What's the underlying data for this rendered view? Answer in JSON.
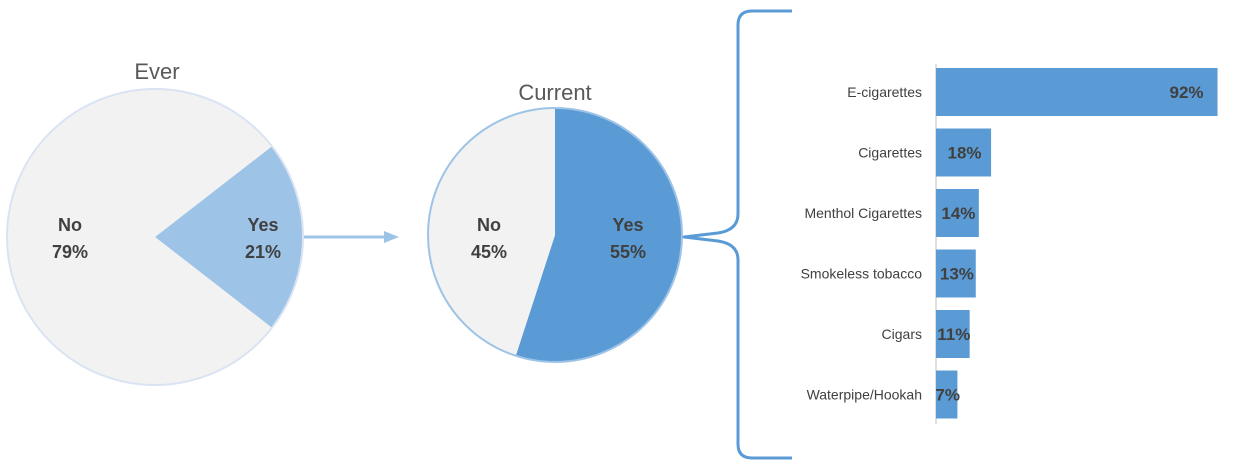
{
  "chart_data": [
    {
      "type": "pie",
      "title": "Ever",
      "slices": [
        {
          "label": "No",
          "value": 79,
          "value_label": "79%",
          "color": "#F2F2F2"
        },
        {
          "label": "Yes",
          "value": 21,
          "value_label": "21%",
          "color": "#9DC3E6"
        }
      ]
    },
    {
      "type": "pie",
      "title": "Current",
      "slices": [
        {
          "label": "No",
          "value": 45,
          "value_label": "45%",
          "color": "#F2F2F2"
        },
        {
          "label": "Yes",
          "value": 55,
          "value_label": "55%",
          "color": "#5B9BD5"
        }
      ]
    },
    {
      "type": "bar",
      "orientation": "horizontal",
      "categories": [
        "E-cigarettes",
        "Cigarettes",
        "Menthol Cigarettes",
        "Smokeless tobacco",
        "Cigars",
        "Waterpipe/Hookah"
      ],
      "values": [
        92,
        18,
        14,
        13,
        11,
        7
      ],
      "value_labels": [
        "92%",
        "18%",
        "14%",
        "13%",
        "11%",
        "7%"
      ],
      "color": "#5B9BD5"
    }
  ],
  "colors": {
    "connector": "#9DC3E6",
    "bracket": "#5B9BD5",
    "axis": "#BFBFBF"
  }
}
